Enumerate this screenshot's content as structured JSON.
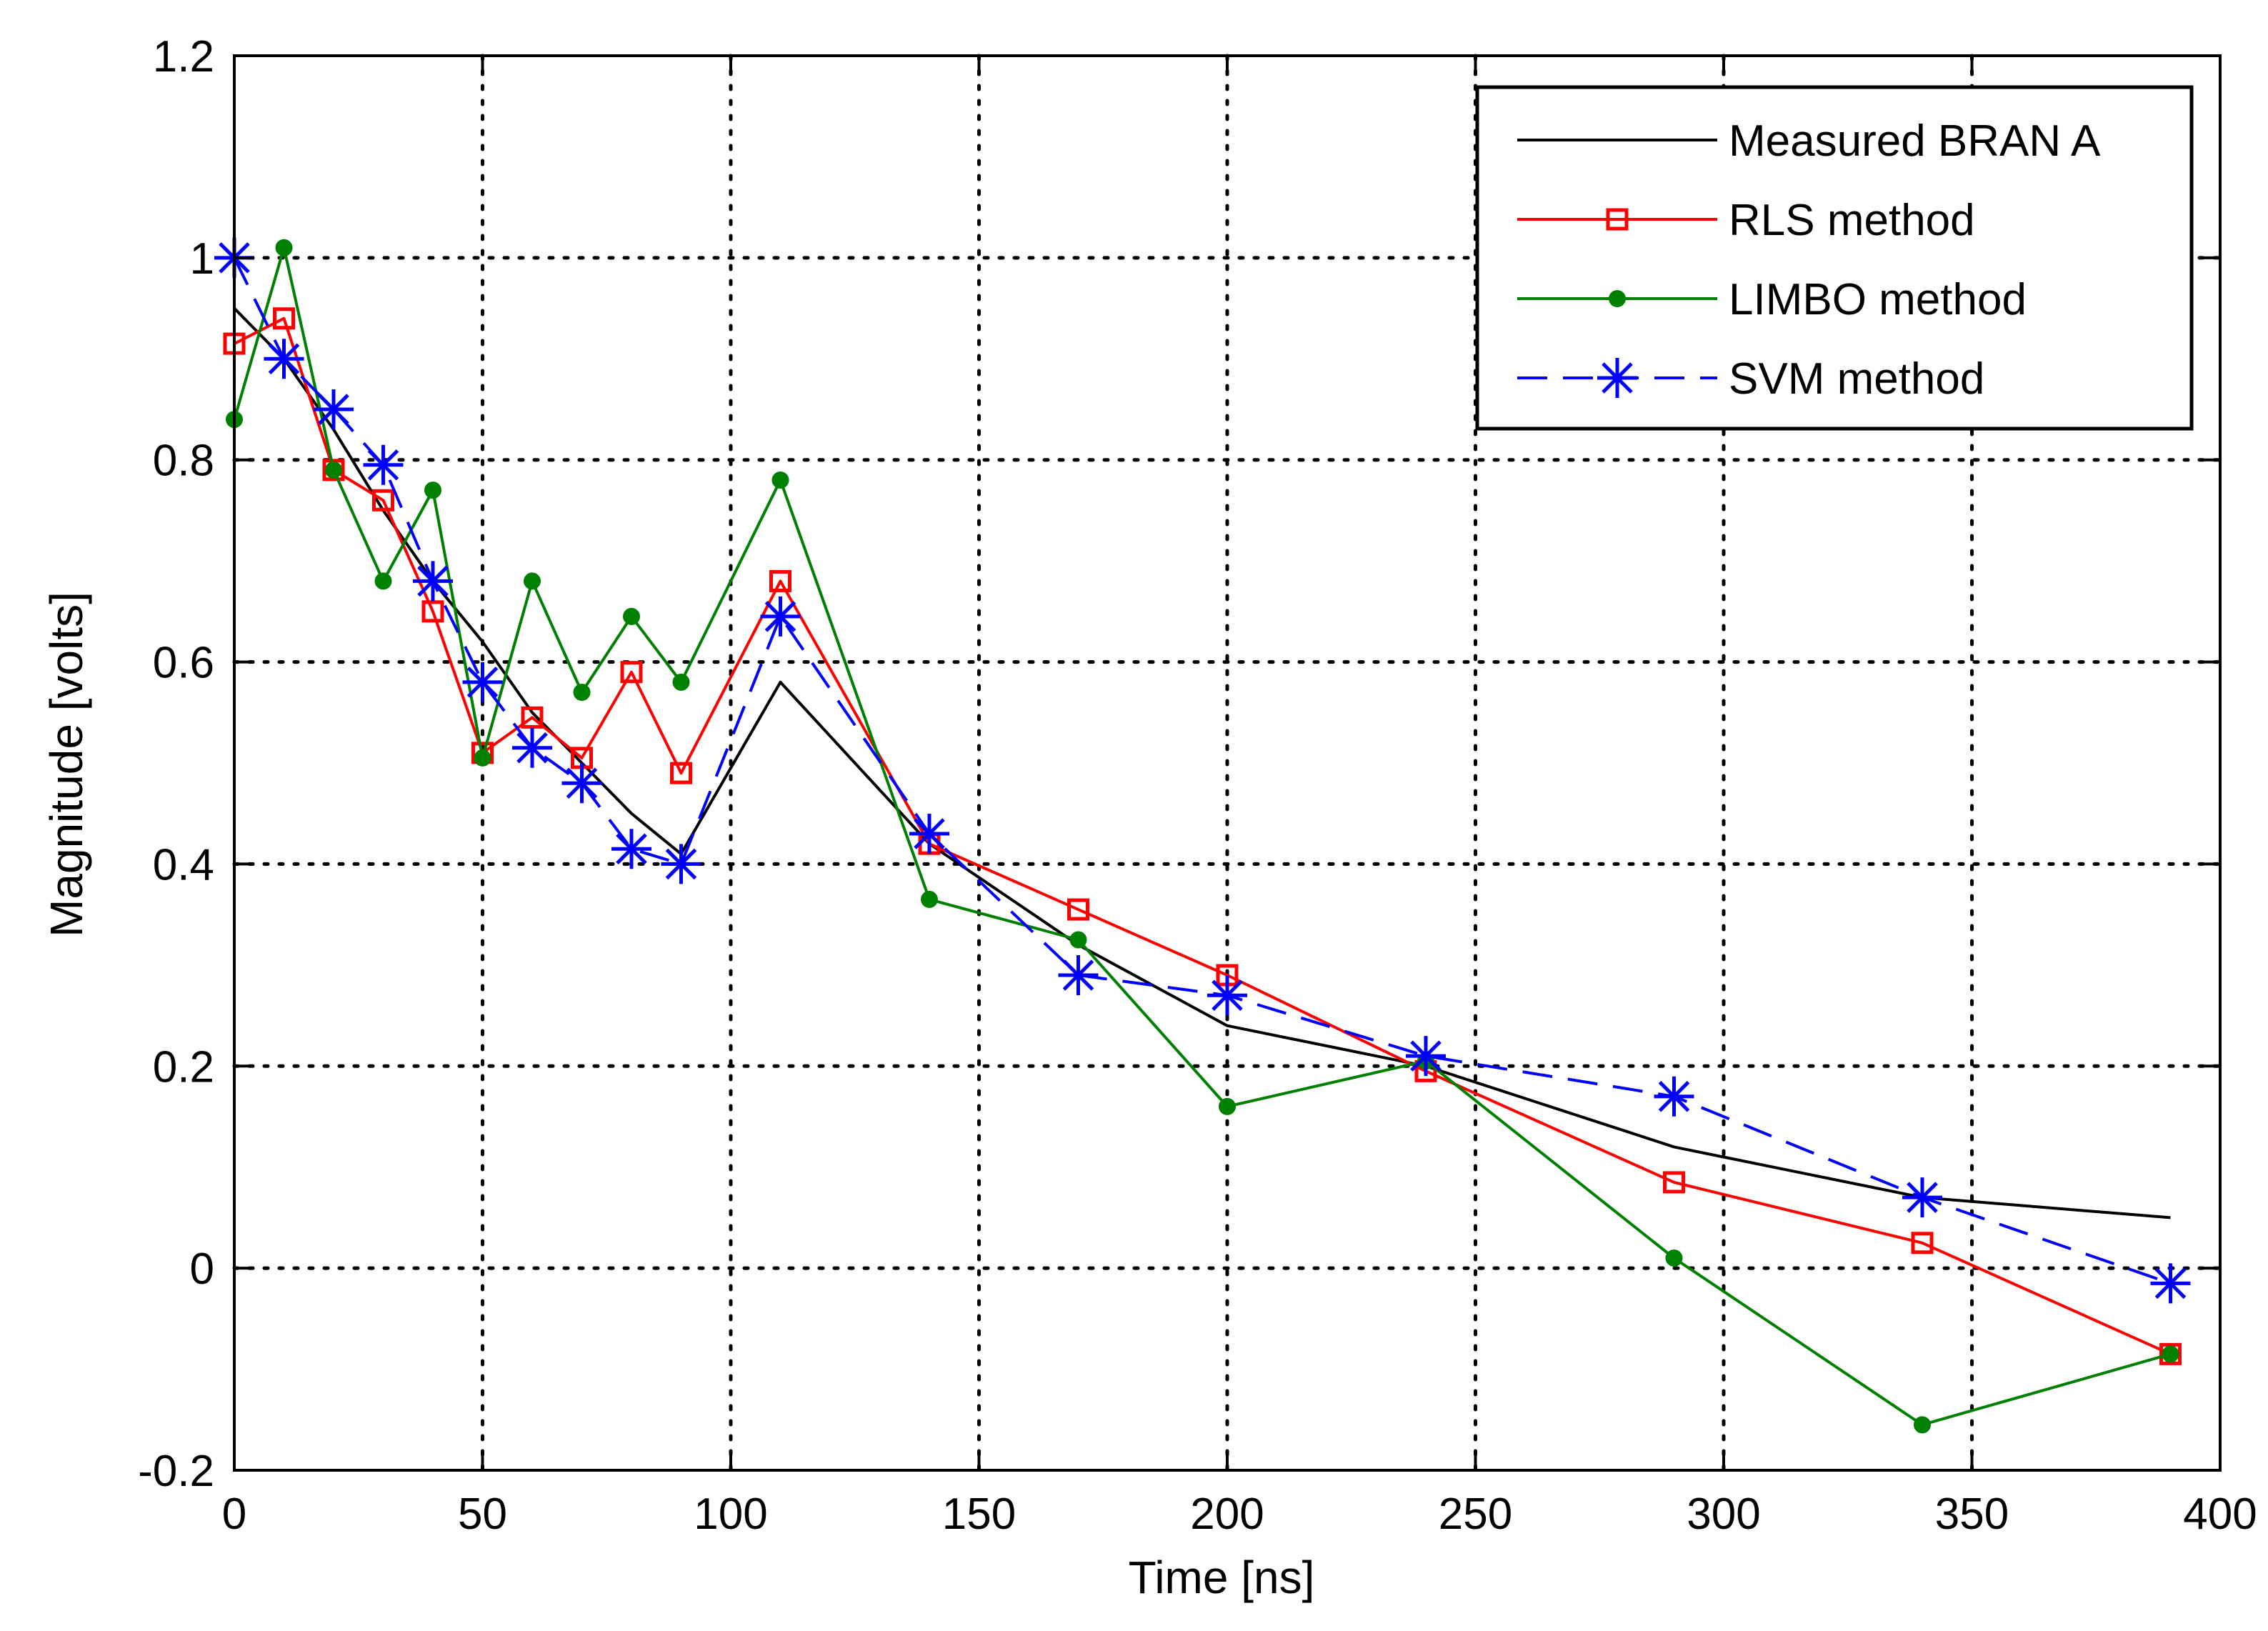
{
  "chart_data": {
    "type": "line",
    "title": "",
    "xlabel": "Time [ns]",
    "ylabel": "Magnitude [volts]",
    "xlim": [
      0,
      400
    ],
    "ylim": [
      -0.2,
      1.2
    ],
    "xticks": [
      0,
      50,
      100,
      150,
      200,
      250,
      300,
      350,
      400
    ],
    "yticks": [
      -0.2,
      0,
      0.2,
      0.4,
      0.6,
      0.8,
      1,
      1.2
    ],
    "xtick_labels": [
      "0",
      "50",
      "100",
      "150",
      "200",
      "250",
      "300",
      "350",
      "400"
    ],
    "ytick_labels": [
      "-0.2",
      "0",
      "0.2",
      "0.4",
      "0.6",
      "0.8",
      "1",
      "1.2"
    ],
    "grid": true,
    "legend_position": "top-right",
    "series": [
      {
        "name": "Measured BRAN A",
        "color": "#000000",
        "marker": "none",
        "dash": "solid",
        "x": [
          0,
          10,
          20,
          30,
          40,
          50,
          60,
          70,
          80,
          90,
          110,
          140,
          170,
          200,
          240,
          290,
          340,
          390
        ],
        "y": [
          0.95,
          0.9,
          0.83,
          0.75,
          0.68,
          0.62,
          0.55,
          0.5,
          0.45,
          0.41,
          0.58,
          0.42,
          0.32,
          0.24,
          0.2,
          0.12,
          0.07,
          0.05
        ]
      },
      {
        "name": "RLS method",
        "color": "#ff0000",
        "marker": "square",
        "dash": "solid",
        "x": [
          0,
          10,
          20,
          30,
          40,
          50,
          60,
          70,
          80,
          90,
          110,
          140,
          170,
          200,
          240,
          290,
          340,
          390
        ],
        "y": [
          0.915,
          0.94,
          0.79,
          0.76,
          0.65,
          0.51,
          0.545,
          0.505,
          0.59,
          0.49,
          0.68,
          0.42,
          0.355,
          0.29,
          0.195,
          0.085,
          0.025,
          -0.085
        ]
      },
      {
        "name": "LIMBO method",
        "color": "#008000",
        "marker": "dot",
        "dash": "solid",
        "x": [
          0,
          10,
          20,
          30,
          40,
          50,
          60,
          70,
          80,
          90,
          110,
          140,
          170,
          200,
          240,
          290,
          340,
          390
        ],
        "y": [
          0.84,
          1.01,
          0.79,
          0.68,
          0.77,
          0.505,
          0.68,
          0.57,
          0.645,
          0.58,
          0.78,
          0.365,
          0.325,
          0.16,
          0.205,
          0.01,
          -0.155,
          -0.085
        ]
      },
      {
        "name": "SVM method",
        "color": "#0000ff",
        "marker": "star",
        "dash": "dashed",
        "x": [
          0,
          10,
          20,
          30,
          40,
          50,
          60,
          70,
          80,
          90,
          110,
          140,
          170,
          200,
          240,
          290,
          340,
          390
        ],
        "y": [
          1.0,
          0.9,
          0.85,
          0.795,
          0.68,
          0.58,
          0.515,
          0.48,
          0.415,
          0.4,
          0.645,
          0.43,
          0.29,
          0.27,
          0.21,
          0.17,
          0.07,
          -0.015
        ]
      }
    ]
  }
}
